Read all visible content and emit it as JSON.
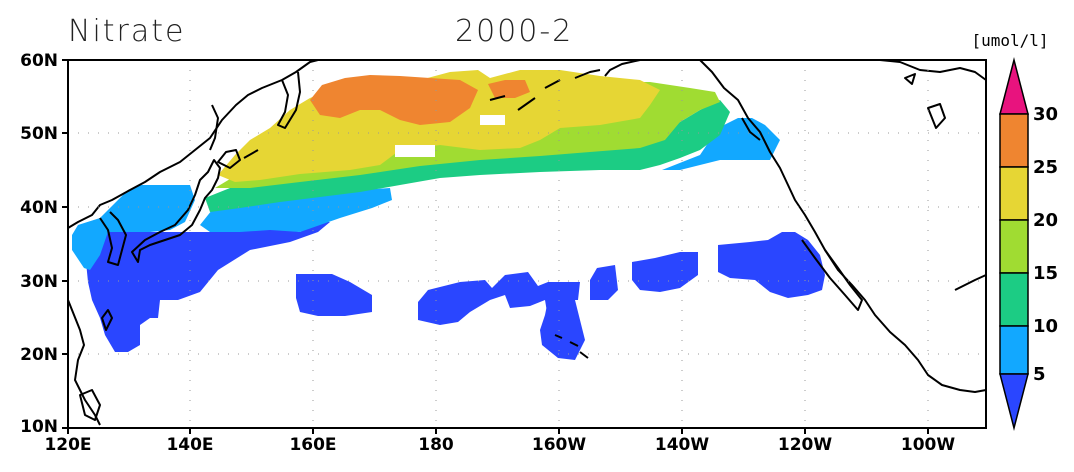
{
  "title_left": "Nitrate",
  "title_center": "2000-2",
  "units": "[umol/l]",
  "y_ticks": [
    "60N",
    "50N",
    "40N",
    "30N",
    "20N",
    "10N"
  ],
  "x_ticks": [
    "120E",
    "140E",
    "160E",
    "180",
    "160W",
    "140W",
    "120W",
    "100W"
  ],
  "colorbar": {
    "labels": [
      "5",
      "10",
      "15",
      "20",
      "25",
      "30"
    ],
    "colors": [
      "#2a46ff",
      "#12a8ff",
      "#1ccc84",
      "#a0dc32",
      "#e6d634",
      "#ef8530",
      "#e8137e"
    ]
  }
}
